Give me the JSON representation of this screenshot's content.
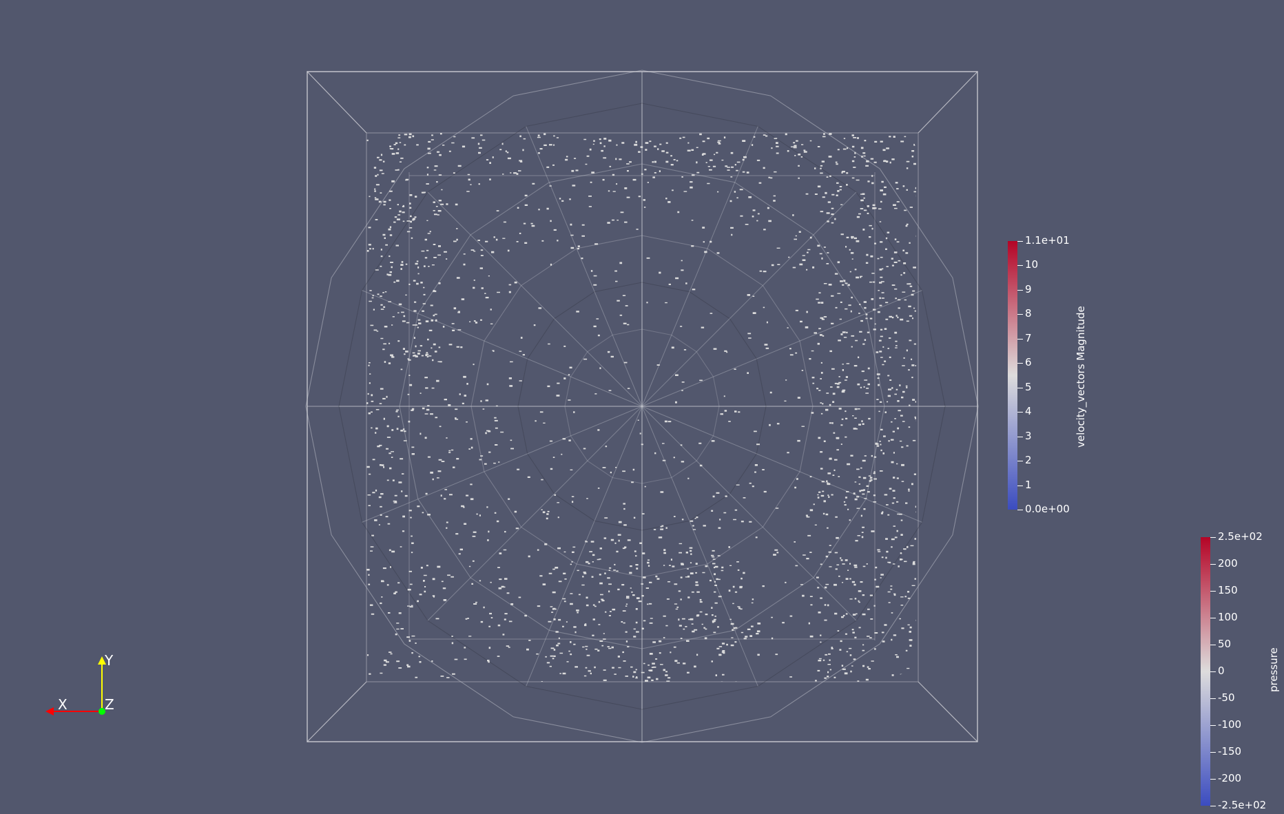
{
  "scene": {
    "background": "#52576d",
    "particle_color": "#dcdcdc",
    "outline_color": "#cfd0d6"
  },
  "colorbars": {
    "velocity": {
      "title": "velocity_vectors Magnitude",
      "top_color": "#b40426",
      "mid_color": "#dddcdc",
      "bottom_color": "#3b4cc0",
      "ticks": [
        "1.1e+01",
        "10",
        "9",
        "8",
        "7",
        "6",
        "5",
        "4",
        "3",
        "2",
        "1",
        "0.0e+00"
      ]
    },
    "pressure": {
      "title": "pressure",
      "top_color": "#b40426",
      "mid_color": "#dddcdc",
      "bottom_color": "#3b4cc0",
      "ticks": [
        "2.5e+02",
        "200",
        "150",
        "100",
        "50",
        "0",
        "-50",
        "-100",
        "-150",
        "-200",
        "-2.5e+02"
      ]
    }
  },
  "orientation_axes": {
    "x_label": "X",
    "y_label": "Y",
    "z_label": "Z",
    "x_color": "#ff0000",
    "y_color": "#ffff00",
    "z_color": "#00ff00"
  }
}
